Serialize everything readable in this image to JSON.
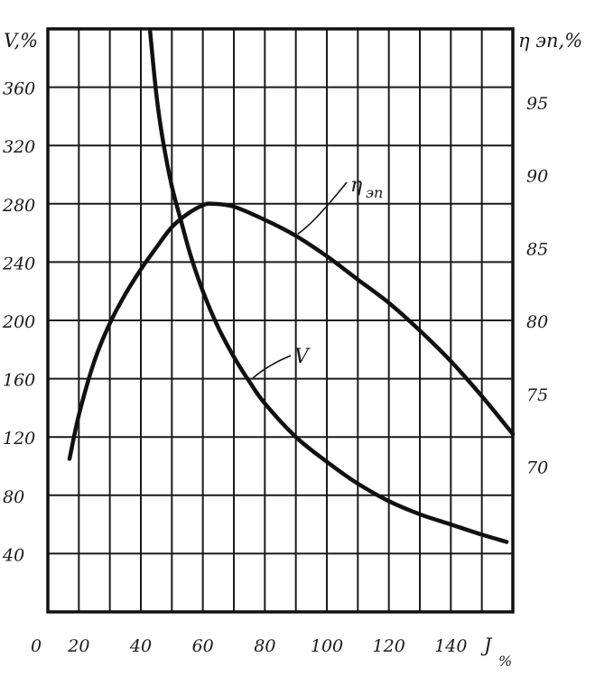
{
  "chart_data": {
    "type": "line",
    "title": "",
    "x_axis": {
      "label": "J, %",
      "label_main": "J",
      "label_unit": "%",
      "range": [
        10,
        160
      ],
      "ticks": [
        0,
        20,
        40,
        60,
        80,
        100,
        120,
        140
      ],
      "tick_labels": [
        "0",
        "20",
        "40",
        "60",
        "80",
        "100",
        "120",
        "140"
      ]
    },
    "y_axis_left": {
      "label": "V,%",
      "range": [
        0,
        400
      ],
      "ticks": [
        40,
        80,
        120,
        160,
        200,
        240,
        280,
        320,
        360
      ],
      "tick_labels": [
        "40",
        "80",
        "120",
        "160",
        "200",
        "240",
        "280",
        "320",
        "360"
      ]
    },
    "y_axis_right": {
      "label": "η эп,%",
      "range": [
        60,
        100
      ],
      "ticks": [
        70,
        75,
        80,
        85,
        90,
        95
      ],
      "tick_labels": [
        "70",
        "75",
        "80",
        "85",
        "90",
        "95"
      ]
    },
    "grid": true,
    "series": [
      {
        "name": "V",
        "label": "V",
        "axis": "left",
        "x": [
          43,
          45,
          47,
          50,
          53,
          56,
          60,
          65,
          70,
          75,
          80,
          90,
          100,
          110,
          120,
          130,
          140,
          150,
          158
        ],
        "y": [
          398,
          355,
          325,
          292,
          268,
          245,
          220,
          195,
          175,
          158,
          143,
          120,
          103,
          88,
          76,
          67,
          60,
          53,
          48
        ]
      },
      {
        "name": "ηэп",
        "label_main": "η",
        "label_sub": "эп",
        "axis": "right",
        "x": [
          17,
          20,
          25,
          30,
          35,
          40,
          45,
          50,
          55,
          60,
          63,
          70,
          80,
          90,
          100,
          110,
          120,
          130,
          140,
          150,
          160
        ],
        "y": [
          70.5,
          73.5,
          77.2,
          79.8,
          81.8,
          83.5,
          85.0,
          86.4,
          87.3,
          87.9,
          88.0,
          87.8,
          86.9,
          85.8,
          84.4,
          82.8,
          81.2,
          79.3,
          77.2,
          74.8,
          72.2
        ]
      }
    ]
  }
}
